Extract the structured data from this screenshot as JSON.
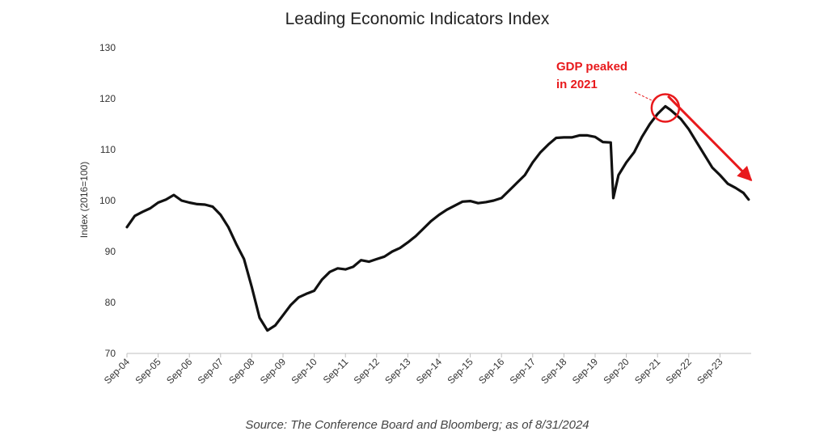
{
  "chart_data": {
    "type": "line",
    "title": "Leading Economic Indicators Index",
    "ylabel": "Index (2016=100)",
    "xlabel": "",
    "ylim": [
      70,
      130
    ],
    "yticks": [
      "70",
      "80",
      "90",
      "100",
      "110",
      "120",
      "130"
    ],
    "grid": false,
    "x_tick_labels": [
      "Sep-04",
      "Sep-05",
      "Sep-06",
      "Sep-07",
      "Sep-08",
      "Sep-09",
      "Sep-10",
      "Sep-11",
      "Sep-12",
      "Sep-13",
      "Sep-14",
      "Sep-15",
      "Sep-16",
      "Sep-17",
      "Sep-18",
      "Sep-19",
      "Sep-20",
      "Sep-21",
      "Sep-22",
      "Sep-23"
    ],
    "series": [
      {
        "color": "#111111",
        "points": [
          [
            "2004-09",
            94.8
          ],
          [
            "2004-12",
            97.0
          ],
          [
            "2005-03",
            97.8
          ],
          [
            "2005-06",
            98.5
          ],
          [
            "2005-09",
            99.6
          ],
          [
            "2005-12",
            100.2
          ],
          [
            "2006-03",
            101.1
          ],
          [
            "2006-06",
            100.0
          ],
          [
            "2006-09",
            99.6
          ],
          [
            "2006-12",
            99.3
          ],
          [
            "2007-03",
            99.2
          ],
          [
            "2007-06",
            98.8
          ],
          [
            "2007-09",
            97.2
          ],
          [
            "2007-12",
            94.8
          ],
          [
            "2008-03",
            91.5
          ],
          [
            "2008-06",
            88.5
          ],
          [
            "2008-09",
            83.0
          ],
          [
            "2008-12",
            77.0
          ],
          [
            "2009-03",
            74.5
          ],
          [
            "2009-06",
            75.5
          ],
          [
            "2009-09",
            77.5
          ],
          [
            "2009-12",
            79.5
          ],
          [
            "2010-03",
            81.0
          ],
          [
            "2010-06",
            81.7
          ],
          [
            "2010-09",
            82.3
          ],
          [
            "2010-12",
            84.5
          ],
          [
            "2011-03",
            86.0
          ],
          [
            "2011-06",
            86.7
          ],
          [
            "2011-09",
            86.5
          ],
          [
            "2011-12",
            87.0
          ],
          [
            "2012-03",
            88.3
          ],
          [
            "2012-06",
            88.0
          ],
          [
            "2012-09",
            88.5
          ],
          [
            "2012-12",
            89.0
          ],
          [
            "2013-03",
            90.0
          ],
          [
            "2013-06",
            90.7
          ],
          [
            "2013-09",
            91.8
          ],
          [
            "2013-12",
            93.0
          ],
          [
            "2014-03",
            94.5
          ],
          [
            "2014-06",
            96.0
          ],
          [
            "2014-09",
            97.2
          ],
          [
            "2014-12",
            98.2
          ],
          [
            "2015-03",
            99.0
          ],
          [
            "2015-06",
            99.8
          ],
          [
            "2015-09",
            99.9
          ],
          [
            "2015-12",
            99.5
          ],
          [
            "2016-03",
            99.7
          ],
          [
            "2016-06",
            100.0
          ],
          [
            "2016-09",
            100.5
          ],
          [
            "2016-12",
            102.0
          ],
          [
            "2017-03",
            103.5
          ],
          [
            "2017-06",
            105.0
          ],
          [
            "2017-09",
            107.5
          ],
          [
            "2017-12",
            109.5
          ],
          [
            "2018-03",
            111.0
          ],
          [
            "2018-06",
            112.3
          ],
          [
            "2018-09",
            112.4
          ],
          [
            "2018-12",
            112.4
          ],
          [
            "2019-03",
            112.8
          ],
          [
            "2019-06",
            112.8
          ],
          [
            "2019-09",
            112.5
          ],
          [
            "2019-12",
            111.5
          ],
          [
            "2020-03",
            111.4
          ],
          [
            "2020-04",
            100.5
          ],
          [
            "2020-06",
            105.0
          ],
          [
            "2020-09",
            107.5
          ],
          [
            "2020-12",
            109.5
          ],
          [
            "2021-03",
            112.5
          ],
          [
            "2021-06",
            115.0
          ],
          [
            "2021-09",
            117.0
          ],
          [
            "2021-12",
            118.5
          ],
          [
            "2022-02",
            117.8
          ],
          [
            "2022-06",
            116.0
          ],
          [
            "2022-09",
            114.0
          ],
          [
            "2022-12",
            111.5
          ],
          [
            "2023-03",
            109.0
          ],
          [
            "2023-06",
            106.5
          ],
          [
            "2023-09",
            105.0
          ],
          [
            "2023-12",
            103.3
          ],
          [
            "2024-03",
            102.5
          ],
          [
            "2024-06",
            101.5
          ],
          [
            "2024-08",
            100.2
          ]
        ]
      }
    ],
    "annotations": [
      {
        "text_lines": [
          "GDP peaked",
          "in 2021"
        ],
        "color": "#e8191c",
        "marker": "circle",
        "target": [
          "2021-12",
          118.5
        ]
      },
      {
        "marker": "arrow",
        "color": "#e8191c",
        "direction": "down-right",
        "from": [
          "2022-01",
          120.5
        ],
        "to": [
          "2024-09",
          104.0
        ]
      }
    ],
    "source_note": "Source: The Conference Board and Bloomberg; as of 8/31/2024"
  }
}
